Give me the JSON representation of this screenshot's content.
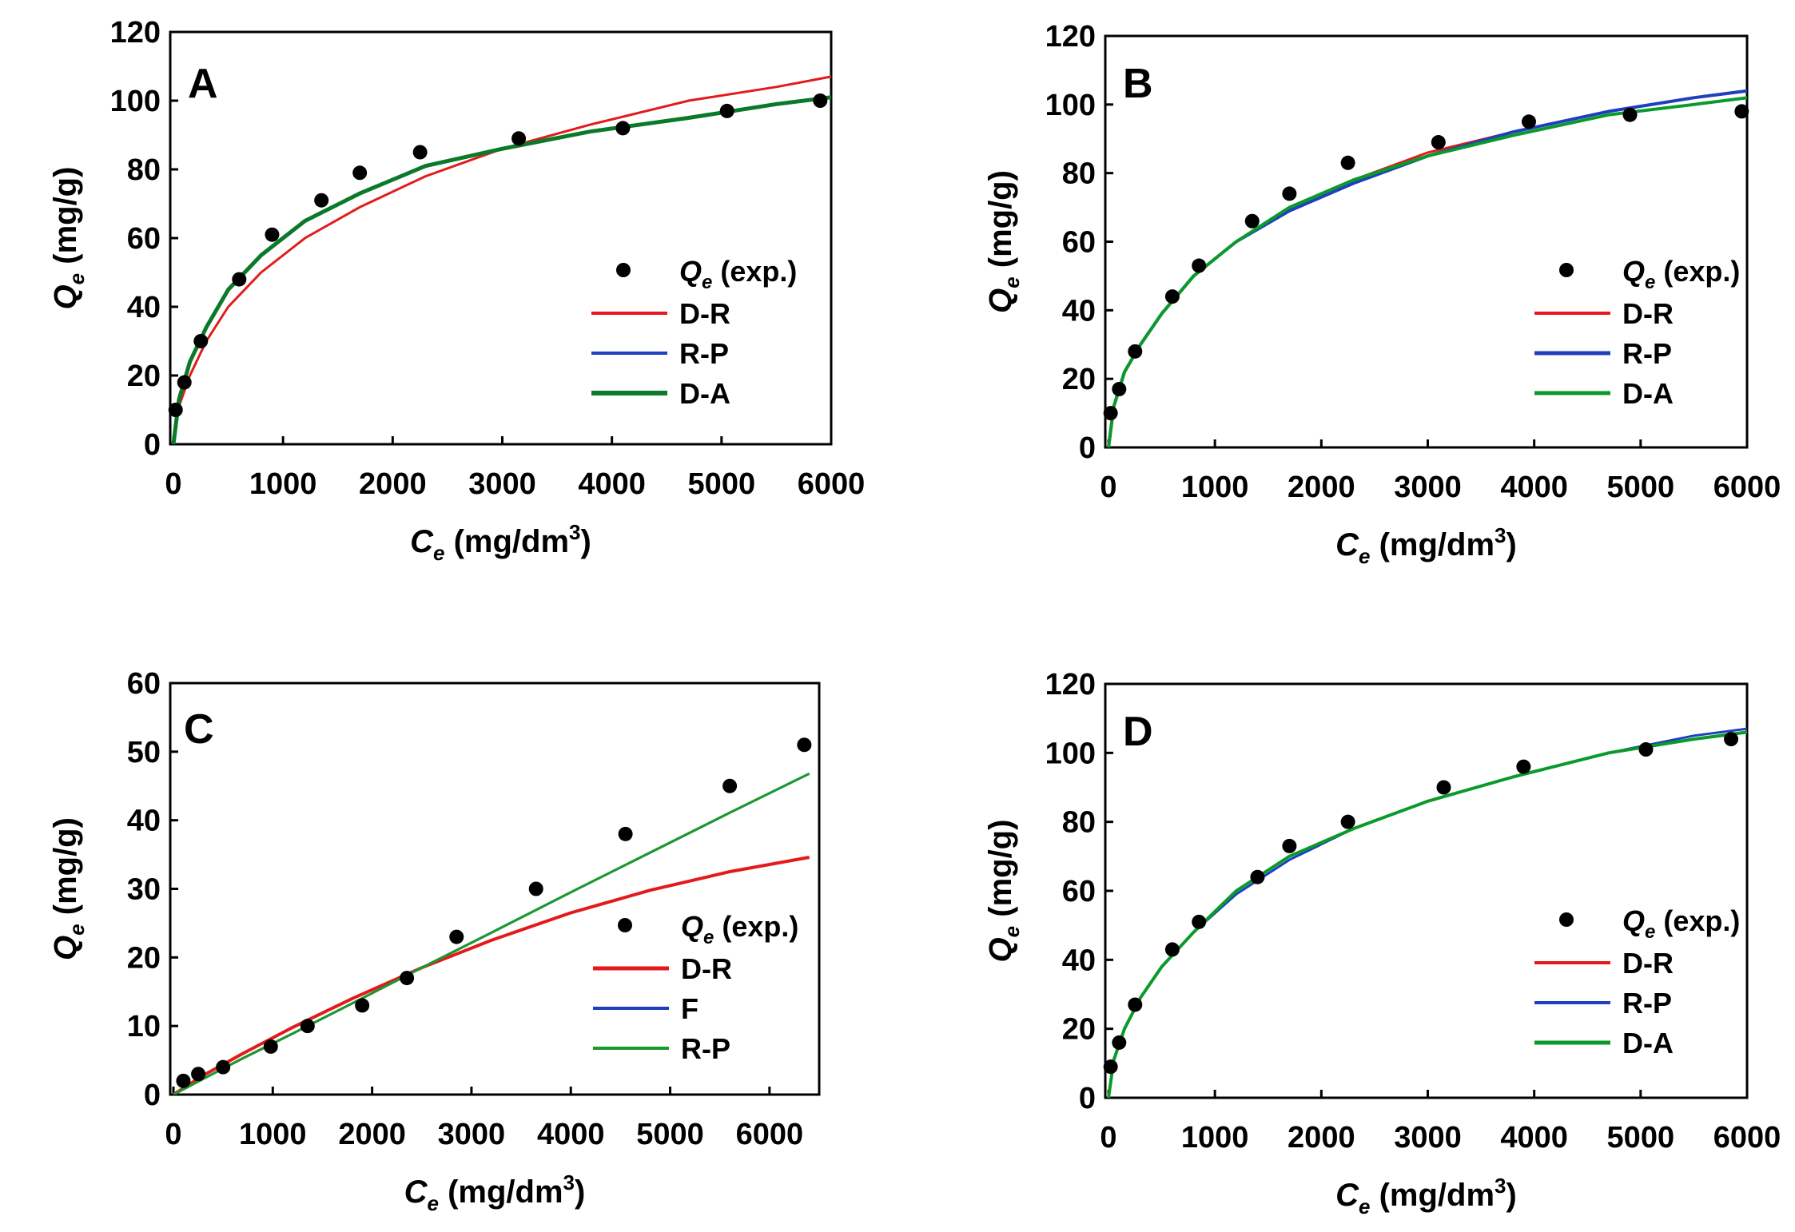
{
  "chart_data": [
    {
      "type": "scatter",
      "panel": "A",
      "xlabel": "Ce (mg/dm3)",
      "ylabel": "Qe (mg/g)",
      "xlim": [
        0,
        6000
      ],
      "ylim": [
        0,
        120
      ],
      "xticks": [
        0,
        1000,
        2000,
        3000,
        4000,
        5000,
        6000
      ],
      "yticks": [
        0,
        20,
        40,
        60,
        80,
        100,
        120
      ],
      "points_label": "(exp.)",
      "points": [
        [
          20,
          10
        ],
        [
          100,
          18
        ],
        [
          250,
          30
        ],
        [
          600,
          48
        ],
        [
          900,
          61
        ],
        [
          1350,
          71
        ],
        [
          1700,
          79
        ],
        [
          2250,
          85
        ],
        [
          3150,
          89
        ],
        [
          4100,
          92
        ],
        [
          5050,
          97
        ],
        [
          5900,
          100
        ]
      ],
      "series": [
        {
          "name": "D-R",
          "color": "#e31a1c",
          "width": 3,
          "x": [
            0,
            50,
            150,
            300,
            500,
            800,
            1200,
            1700,
            2300,
            3000,
            3800,
            4700,
            5500,
            6000
          ],
          "values": [
            0,
            11,
            20,
            30,
            40,
            50,
            60,
            69,
            78,
            86,
            93,
            100,
            104,
            107
          ]
        },
        {
          "name": "R-P",
          "color": "#1f3fbf",
          "width": 3,
          "x": [
            0,
            50,
            150,
            300,
            500,
            800,
            1200,
            1700,
            2300,
            3000,
            3800,
            4700,
            5500,
            6000
          ],
          "values": [
            0,
            13,
            24,
            34,
            45,
            55,
            65,
            73,
            81,
            86,
            91,
            95,
            99,
            101
          ]
        },
        {
          "name": "D-A",
          "color": "#0a7a2a",
          "width": 5,
          "x": [
            0,
            50,
            150,
            300,
            500,
            800,
            1200,
            1700,
            2300,
            3000,
            3800,
            4700,
            5500,
            6000
          ],
          "values": [
            0,
            13,
            24,
            34,
            45,
            55,
            65,
            73,
            81,
            86,
            91,
            95,
            99,
            101
          ]
        }
      ]
    },
    {
      "type": "scatter",
      "panel": "B",
      "xlabel": "Ce (mg/dm3)",
      "ylabel": "Qe (mg/g)",
      "xlim": [
        0,
        6000
      ],
      "ylim": [
        0,
        120
      ],
      "xticks": [
        0,
        1000,
        2000,
        3000,
        4000,
        5000,
        6000
      ],
      "yticks": [
        0,
        20,
        40,
        60,
        80,
        100,
        120
      ],
      "points_label": "(exp.)",
      "points": [
        [
          20,
          10
        ],
        [
          100,
          17
        ],
        [
          250,
          28
        ],
        [
          600,
          44
        ],
        [
          850,
          53
        ],
        [
          1350,
          66
        ],
        [
          1700,
          74
        ],
        [
          2250,
          83
        ],
        [
          3100,
          89
        ],
        [
          3950,
          95
        ],
        [
          4900,
          97
        ],
        [
          5950,
          98
        ]
      ],
      "series": [
        {
          "name": "D-R",
          "color": "#e31a1c",
          "width": 3,
          "x": [
            0,
            50,
            150,
            300,
            500,
            800,
            1200,
            1700,
            2300,
            3000,
            3800,
            4700,
            5500,
            6000
          ],
          "values": [
            0,
            12,
            22,
            30,
            39,
            50,
            60,
            70,
            78,
            86,
            92,
            98,
            102,
            104
          ]
        },
        {
          "name": "R-P",
          "color": "#1f3fbf",
          "width": 4,
          "x": [
            0,
            50,
            150,
            300,
            500,
            800,
            1200,
            1700,
            2300,
            3000,
            3800,
            4700,
            5500,
            6000
          ],
          "values": [
            0,
            12,
            22,
            30,
            39,
            50,
            60,
            69,
            77,
            85,
            92,
            98,
            102,
            104
          ]
        },
        {
          "name": "D-A",
          "color": "#0a9a2a",
          "width": 4,
          "x": [
            0,
            50,
            150,
            300,
            500,
            800,
            1200,
            1700,
            2300,
            3000,
            3800,
            4700,
            5500,
            6000
          ],
          "values": [
            0,
            12,
            22,
            30,
            39,
            50,
            60,
            70,
            78,
            85,
            91,
            97,
            100,
            102
          ]
        }
      ]
    },
    {
      "type": "scatter",
      "panel": "C",
      "xlabel": "Ce (mg/dm3)",
      "ylabel": "Qe (mg/g)",
      "xlim": [
        0,
        6500
      ],
      "ylim": [
        0,
        60
      ],
      "xticks": [
        0,
        1000,
        2000,
        3000,
        4000,
        5000,
        6000
      ],
      "yticks": [
        0,
        10,
        20,
        30,
        40,
        50,
        60
      ],
      "points_label": "(exp.)",
      "points": [
        [
          100,
          2
        ],
        [
          250,
          3
        ],
        [
          500,
          4
        ],
        [
          980,
          7
        ],
        [
          1350,
          10
        ],
        [
          1900,
          13
        ],
        [
          2350,
          17
        ],
        [
          2850,
          23
        ],
        [
          3650,
          30
        ],
        [
          4550,
          38
        ],
        [
          5600,
          45
        ],
        [
          6350,
          51
        ]
      ],
      "series": [
        {
          "name": "D-R",
          "color": "#e31a1c",
          "width": 4,
          "x": [
            0,
            300,
            700,
            1200,
            1800,
            2500,
            3200,
            4000,
            4800,
            5600,
            6400
          ],
          "values": [
            0,
            2.8,
            6,
            9.8,
            14,
            18.5,
            22.5,
            26.5,
            29.8,
            32.5,
            34.6
          ]
        },
        {
          "name": "F",
          "color": "#1f3fbf",
          "width": 3,
          "x": [
            0,
            300,
            700,
            1200,
            1800,
            2500,
            3200,
            4000,
            4800,
            5600,
            6400
          ],
          "values": [
            0,
            2.3,
            5.3,
            8.9,
            13.3,
            18.5,
            23.6,
            29.5,
            35.3,
            41.1,
            46.8
          ]
        },
        {
          "name": "R-P",
          "color": "#1a9a2a",
          "width": 3,
          "x": [
            0,
            300,
            700,
            1200,
            1800,
            2500,
            3200,
            4000,
            4800,
            5600,
            6400
          ],
          "values": [
            0,
            2.3,
            5.3,
            8.9,
            13.3,
            18.5,
            23.6,
            29.5,
            35.3,
            41.1,
            46.8
          ]
        }
      ]
    },
    {
      "type": "scatter",
      "panel": "D",
      "xlabel": "Ce (mg/dm3)",
      "ylabel": "Qe (mg/g)",
      "xlim": [
        0,
        6000
      ],
      "ylim": [
        0,
        120
      ],
      "xticks": [
        0,
        1000,
        2000,
        3000,
        4000,
        5000,
        6000
      ],
      "yticks": [
        0,
        20,
        40,
        60,
        80,
        100,
        120
      ],
      "points_label": "(exp.)",
      "points": [
        [
          20,
          9
        ],
        [
          100,
          16
        ],
        [
          250,
          27
        ],
        [
          600,
          43
        ],
        [
          850,
          51
        ],
        [
          1400,
          64
        ],
        [
          1700,
          73
        ],
        [
          2250,
          80
        ],
        [
          3150,
          90
        ],
        [
          3900,
          96
        ],
        [
          5050,
          101
        ],
        [
          5850,
          104
        ]
      ],
      "series": [
        {
          "name": "D-R",
          "color": "#e31a1c",
          "width": 3,
          "x": [
            0,
            50,
            150,
            300,
            500,
            800,
            1200,
            1700,
            2300,
            3000,
            3800,
            4700,
            5500,
            6000
          ],
          "values": [
            0,
            11,
            20,
            29,
            38,
            48,
            60,
            70,
            78,
            86,
            93,
            100,
            104,
            106
          ]
        },
        {
          "name": "R-P",
          "color": "#1f3fbf",
          "width": 3,
          "x": [
            0,
            50,
            150,
            300,
            500,
            800,
            1200,
            1700,
            2300,
            3000,
            3800,
            4700,
            5500,
            6000
          ],
          "values": [
            0,
            11,
            20,
            29,
            38,
            48,
            59,
            69,
            78,
            86,
            93,
            100,
            105,
            107
          ]
        },
        {
          "name": "D-A",
          "color": "#0a9a2a",
          "width": 4,
          "x": [
            0,
            50,
            150,
            300,
            500,
            800,
            1200,
            1700,
            2300,
            3000,
            3800,
            4700,
            5500,
            6000
          ],
          "values": [
            0,
            11,
            20,
            29,
            38,
            48,
            60,
            70,
            78,
            86,
            93,
            100,
            104,
            106
          ]
        }
      ]
    }
  ]
}
